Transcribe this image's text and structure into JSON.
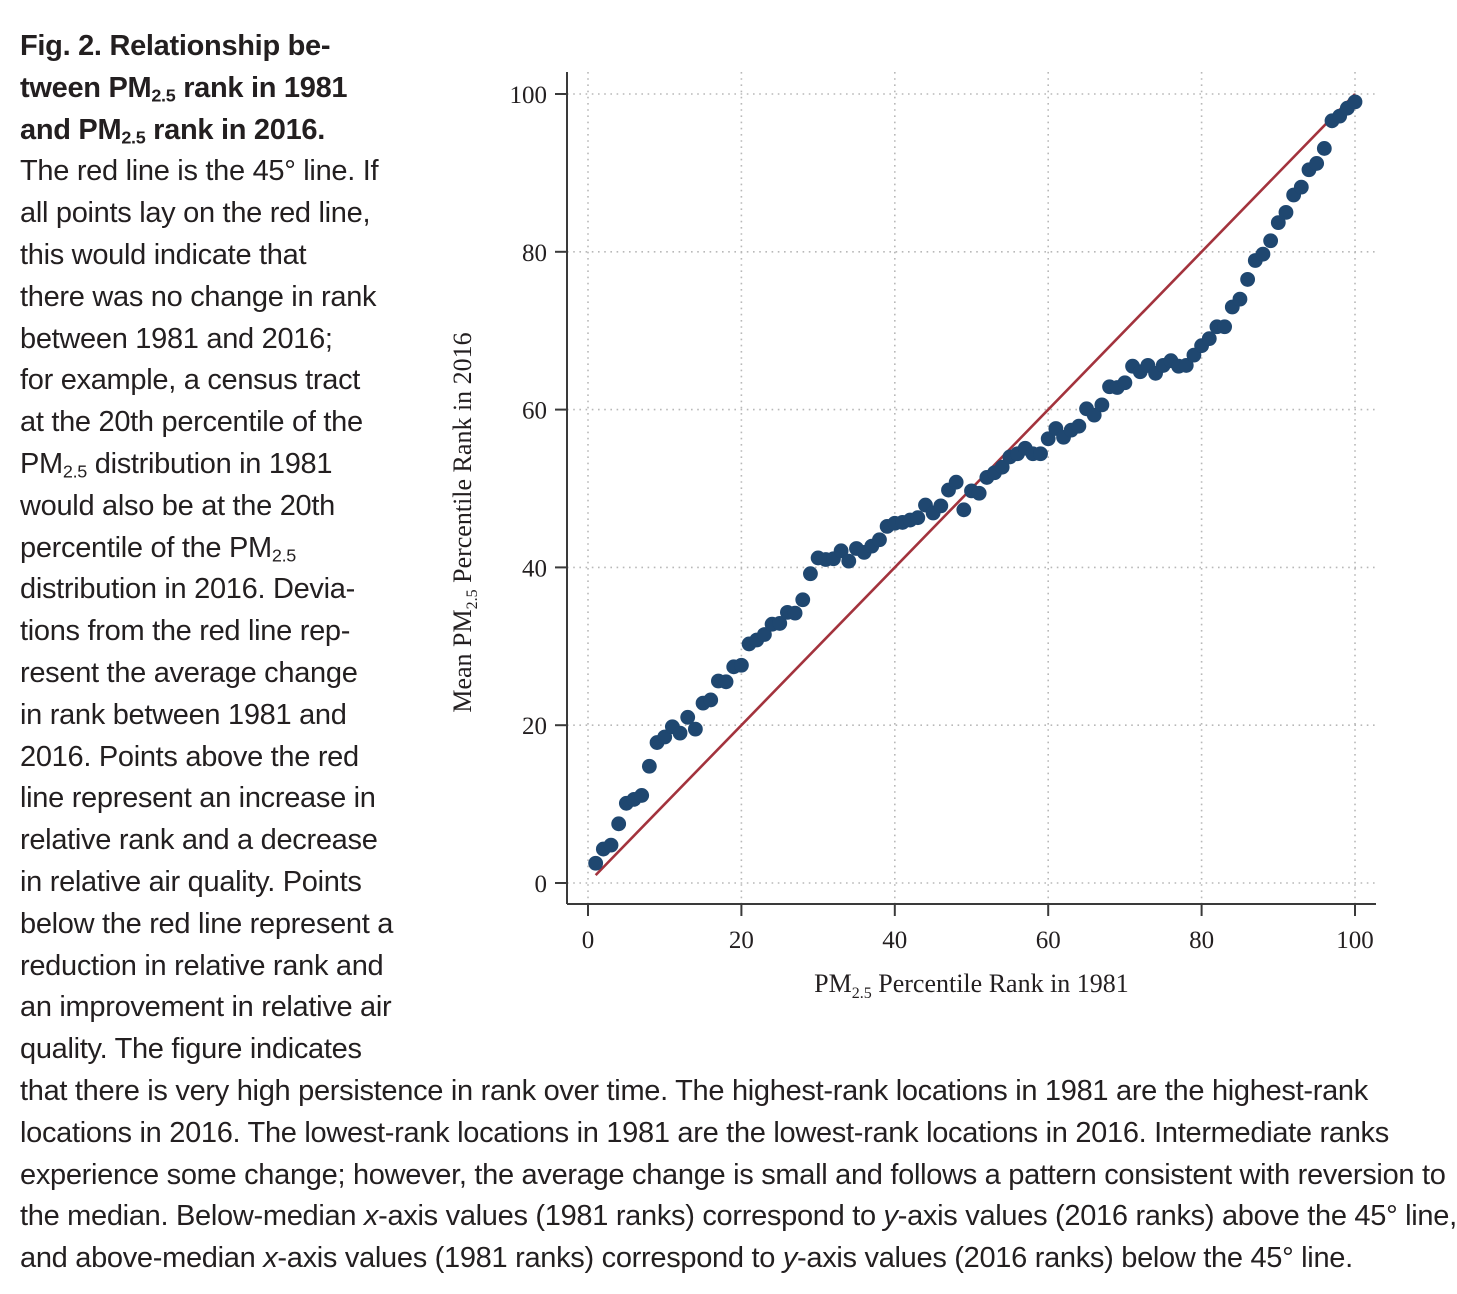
{
  "caption": {
    "title_lines": [
      [
        "Fig. 2. Relationship be-"
      ],
      [
        "tween PM",
        "2.5",
        " rank in 1981"
      ],
      [
        "and PM",
        "2.5",
        " rank in 2016."
      ]
    ],
    "body_lines": [
      [
        "The red line is the 45° line. If"
      ],
      [
        "all points lay on the red line,"
      ],
      [
        "this would indicate that"
      ],
      [
        "there was no change in rank"
      ],
      [
        "between 1981 and 2016;"
      ],
      [
        "for example, a census tract"
      ],
      [
        "at the 20th percentile of the"
      ],
      [
        "PM",
        "2.5",
        " distribution in 1981"
      ],
      [
        "would also be at the 20th"
      ],
      [
        "percentile of the PM",
        "2.5"
      ],
      [
        "distribution in 2016. Devia-"
      ],
      [
        "tions from the red line rep-"
      ],
      [
        "resent the average change"
      ],
      [
        "in rank between 1981 and"
      ],
      [
        "2016. Points above the red"
      ],
      [
        "line represent an increase in"
      ],
      [
        "relative rank and a decrease"
      ],
      [
        "in relative air quality. Points"
      ],
      [
        "below the red line represent a"
      ],
      [
        "reduction in relative rank and"
      ],
      [
        "an improvement in relative air"
      ],
      [
        "quality. The figure indicates"
      ]
    ],
    "bottom_lines": [
      "that there is very high persistence in rank over time. The highest-rank locations in 1981 are the highest-rank",
      "locations in 2016. The lowest-rank locations in 1981 are the lowest-rank locations in 2016. Intermediate ranks",
      "experience some change; however, the average change is small and follows a pattern consistent with reversion to",
      "the median. Below-median x-axis values (1981 ranks) correspond to y-axis values (2016 ranks) above the 45° line,",
      "and above-median x-axis values (1981 ranks) correspond to y-axis values (2016 ranks) below the 45° line."
    ]
  },
  "chart_data": {
    "type": "scatter",
    "xlabel": "PM2.5 Percentile Rank in 1981",
    "ylabel": "Mean PM2.5 Percentile Rank in 2016",
    "xlim": [
      0,
      100
    ],
    "ylim": [
      0,
      100
    ],
    "xticks": [
      0,
      20,
      40,
      60,
      80,
      100
    ],
    "yticks": [
      0,
      20,
      40,
      60,
      80,
      100
    ],
    "grid": true,
    "reference_line": {
      "from": [
        1,
        1
      ],
      "to": [
        100,
        100
      ],
      "color": "#a3333d"
    },
    "point_color": "#1f4770",
    "x": [
      1,
      2,
      3,
      4,
      5,
      6,
      7,
      8,
      9,
      10,
      11,
      12,
      13,
      14,
      15,
      16,
      17,
      18,
      19,
      20,
      21,
      22,
      23,
      24,
      25,
      26,
      27,
      28,
      29,
      30,
      31,
      32,
      33,
      34,
      35,
      36,
      37,
      38,
      39,
      40,
      41,
      42,
      43,
      44,
      45,
      46,
      47,
      48,
      49,
      50,
      51,
      52,
      53,
      54,
      55,
      56,
      57,
      58,
      59,
      60,
      61,
      62,
      63,
      64,
      65,
      66,
      67,
      68,
      69,
      70,
      71,
      72,
      73,
      74,
      75,
      76,
      77,
      78,
      79,
      80,
      81,
      82,
      83,
      84,
      85,
      86,
      87,
      88,
      89,
      90,
      91,
      92,
      93,
      94,
      95,
      96,
      97,
      98,
      99,
      100
    ],
    "y": [
      2.5,
      4.3,
      4.8,
      7.5,
      10.1,
      10.6,
      11.1,
      14.8,
      17.8,
      18.5,
      19.8,
      19.0,
      21.0,
      19.5,
      22.8,
      23.2,
      25.6,
      25.5,
      27.4,
      27.6,
      30.3,
      30.8,
      31.5,
      32.8,
      32.9,
      34.3,
      34.2,
      35.9,
      39.2,
      41.2,
      41.0,
      41.1,
      42.1,
      40.8,
      42.4,
      41.9,
      42.7,
      43.5,
      45.2,
      45.6,
      45.7,
      46.0,
      46.3,
      47.9,
      46.9,
      47.8,
      49.8,
      50.8,
      47.3,
      49.7,
      49.4,
      51.4,
      52.0,
      52.7,
      54.0,
      54.4,
      55.1,
      54.4,
      54.4,
      56.3,
      57.6,
      56.5,
      57.4,
      57.9,
      60.1,
      59.3,
      60.6,
      62.9,
      62.8,
      63.4,
      65.5,
      64.8,
      65.6,
      64.6,
      65.6,
      66.2,
      65.5,
      65.6,
      66.9,
      68.1,
      69.0,
      70.5,
      70.5,
      73.0,
      74.0,
      76.5,
      78.9,
      79.7,
      81.4,
      83.7,
      85.0,
      87.2,
      88.2,
      90.4,
      91.2,
      93.1,
      96.6,
      97.2,
      98.2,
      99.0
    ]
  }
}
